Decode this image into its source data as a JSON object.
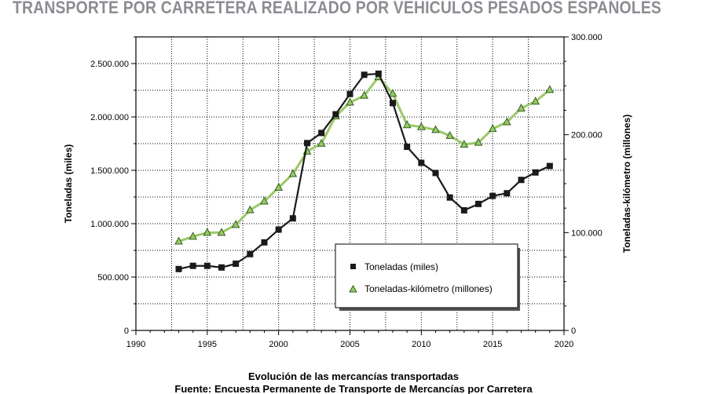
{
  "header": {
    "title": "TRANSPORTE POR CARRETERA REALIZADO POR VEHICULOS PESADOS ESPAÑOLES"
  },
  "chart_data": {
    "type": "line",
    "title": "TRANSPORTE POR CARRETERA REALIZADO POR VEHICULOS PESADOS ESPAÑOLES",
    "xlabel": "",
    "ylabel": "Toneladas (miles)",
    "y2label": "Toneladas-kilómetro (millones)",
    "xlim": [
      1990,
      2020
    ],
    "ylim": [
      0,
      2750000
    ],
    "y2lim": [
      0,
      300000
    ],
    "x_ticks": [
      1990,
      1995,
      2000,
      2005,
      2010,
      2015,
      2020
    ],
    "x_tick_labels": [
      "1990",
      "1995",
      "2000",
      "2005",
      "2010",
      "2015",
      "2020"
    ],
    "y_ticks": [
      0,
      500000,
      1000000,
      1500000,
      2000000,
      2500000
    ],
    "y_tick_labels": [
      "0",
      "500.000",
      "1.000.000",
      "1.500.000",
      "2.000.000",
      "2.500.000"
    ],
    "y2_ticks": [
      0,
      100000,
      200000,
      300000
    ],
    "y2_tick_labels": [
      "0",
      "100.000",
      "200.000",
      "300.000"
    ],
    "grid": true,
    "legend_position": "bottom-center",
    "series": [
      {
        "name": "Toneladas (miles)",
        "axis": "left",
        "marker": "square",
        "color": "#1a1a1a",
        "x": [
          1993,
          1994,
          1995,
          1996,
          1997,
          1998,
          1999,
          2000,
          2001,
          2002,
          2003,
          2004,
          2005,
          2006,
          2007,
          2008,
          2009,
          2010,
          2011,
          2012,
          2013,
          2014,
          2015,
          2016,
          2017,
          2018,
          2019
        ],
        "values": [
          575000,
          605000,
          605000,
          590000,
          625000,
          715000,
          825000,
          945000,
          1050000,
          1755000,
          1850000,
          2025000,
          2215000,
          2395000,
          2405000,
          2130000,
          1720000,
          1570000,
          1475000,
          1245000,
          1125000,
          1185000,
          1260000,
          1285000,
          1410000,
          1480000,
          1540000
        ]
      },
      {
        "name": "Toneladas-kilómetro (millones)",
        "axis": "right",
        "marker": "triangle",
        "color": "#9ac867",
        "markerColor": "#2f5f1e",
        "x": [
          1993,
          1994,
          1995,
          1996,
          1997,
          1998,
          1999,
          2000,
          2001,
          2002,
          2003,
          2004,
          2005,
          2006,
          2007,
          2008,
          2009,
          2010,
          2011,
          2012,
          2013,
          2014,
          2015,
          2016,
          2017,
          2018,
          2019
        ],
        "values": [
          91000,
          96000,
          100000,
          100000,
          108000,
          123000,
          132000,
          146000,
          160000,
          183000,
          191000,
          219000,
          233000,
          240000,
          259000,
          242000,
          210000,
          208000,
          205000,
          199000,
          190000,
          192000,
          206000,
          213000,
          227000,
          234000,
          246000
        ]
      }
    ]
  },
  "captions": {
    "line1": "Evolución de las mercancías transportadas",
    "line2": "Fuente: Encuesta Permanente de Transporte de Mercancías por Carretera"
  }
}
